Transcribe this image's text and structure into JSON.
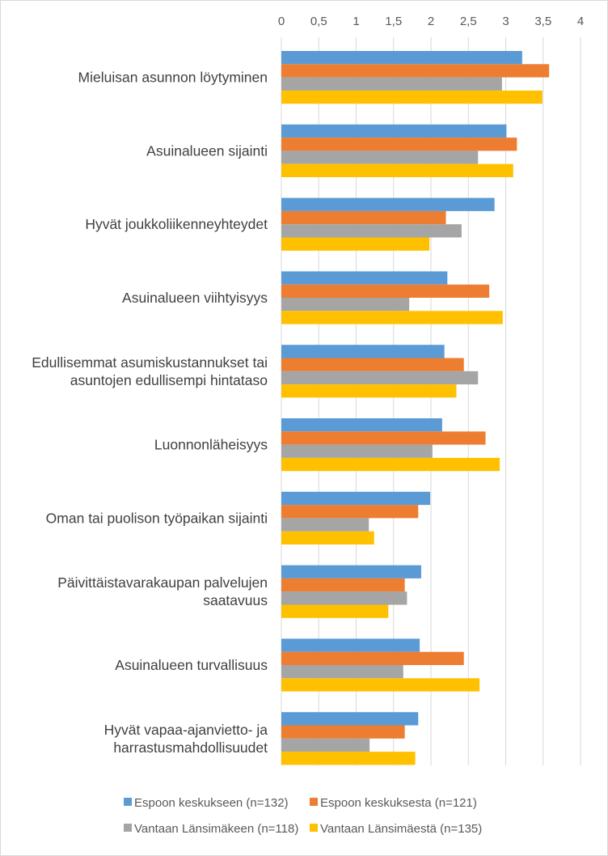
{
  "chart_data": {
    "type": "bar",
    "orientation": "horizontal",
    "title": "",
    "xlabel": "",
    "ylabel": "",
    "xlim": [
      0,
      4
    ],
    "ticks": [
      "0",
      "0,5",
      "1",
      "1,5",
      "2",
      "2,5",
      "3",
      "3,5",
      "4"
    ],
    "grid": true,
    "legend_position": "bottom",
    "categories": [
      [
        "Mieluisan asunnon löytyminen"
      ],
      [
        "Asuinalueen sijainti"
      ],
      [
        "Hyvät joukkoliikenneyhteydet"
      ],
      [
        "Asuinalueen viihtyisyys"
      ],
      [
        "Edullisemmat asumiskustannukset tai",
        "asuntojen edullisempi hintataso"
      ],
      [
        "Luonnonläheisyys"
      ],
      [
        "Oman tai puolison työpaikan sijainti"
      ],
      [
        "Päivittäistavarakaupan palvelujen",
        "saatavuus"
      ],
      [
        "Asuinalueen turvallisuus"
      ],
      [
        "Hyvät vapaa-ajanvietto- ja",
        "harrastusmahdollisuudet"
      ]
    ],
    "series": [
      {
        "name": "Espoon keskukseen (n=132)",
        "color": "#5B9BD5",
        "values": [
          3.22,
          3.01,
          2.85,
          2.22,
          2.18,
          2.15,
          1.99,
          1.87,
          1.85,
          1.83
        ]
      },
      {
        "name": "Espoon keskuksesta (n=121)",
        "color": "#ED7D31",
        "values": [
          3.58,
          3.15,
          2.2,
          2.78,
          2.44,
          2.73,
          1.83,
          1.65,
          2.44,
          1.65
        ]
      },
      {
        "name": "Vantaan Länsimäkeen (n=118)",
        "color": "#A5A5A5",
        "values": [
          2.95,
          2.63,
          2.41,
          1.71,
          2.63,
          2.02,
          1.17,
          1.68,
          1.63,
          1.18
        ]
      },
      {
        "name": "Vantaan Länsimäestä (n=135)",
        "color": "#FFC000",
        "values": [
          3.49,
          3.1,
          1.98,
          2.96,
          2.34,
          2.92,
          1.24,
          1.43,
          2.65,
          1.79
        ]
      }
    ]
  }
}
